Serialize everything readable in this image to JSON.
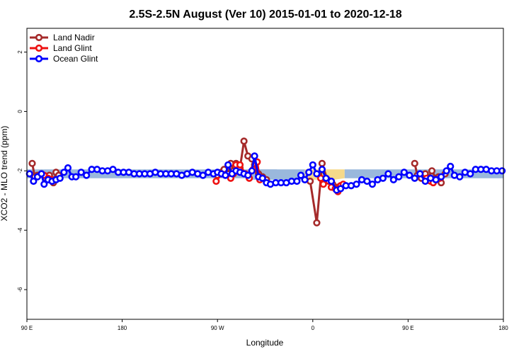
{
  "chart_data": {
    "type": "line",
    "title": "2.5S-2.5N August (Ver 10)   2015-01-01 to 2020-12-18",
    "xlabel": "Longitude",
    "ylabel": "XCO2 - MLO trend (ppm)",
    "xlim": [
      90,
      450
    ],
    "ylim": [
      -7.0,
      2.8
    ],
    "x_ticks": [
      {
        "value": 90,
        "label": "90 E"
      },
      {
        "value": 162,
        "label": "180"
      },
      {
        "value": 234,
        "label": "90 W"
      },
      {
        "value": 306,
        "label": "0"
      },
      {
        "value": 378,
        "label": "90 E"
      },
      {
        "value": 450,
        "label": "180"
      }
    ],
    "y_ticks": [
      {
        "value": 2,
        "label": "2"
      },
      {
        "value": 0,
        "label": "0"
      },
      {
        "value": -2,
        "label": "-2"
      },
      {
        "value": -4,
        "label": "-4"
      },
      {
        "value": -6,
        "label": "-6"
      }
    ],
    "legend_position": "top-left",
    "bands": [
      {
        "color": "#9ab8dc",
        "segments": [
          {
            "x": [
              90,
              124,
              131,
              245,
              252,
              279
            ],
            "ylo": [
              -2.25,
              -2.25,
              -2.25,
              -2.25,
              -2.25,
              -2.25
            ],
            "yhi": [
              -1.95,
              -1.95,
              -1.95,
              -1.95,
              -1.95,
              -1.95
            ]
          },
          {
            "x": [
              256,
              300
            ],
            "ylo": [
              -2.3,
              -2.3
            ],
            "yhi": [
              -1.95,
              -1.95
            ]
          },
          {
            "x": [
              330,
              450
            ],
            "ylo": [
              -2.25,
              -2.25
            ],
            "yhi": [
              -1.95,
              -1.95
            ]
          }
        ]
      },
      {
        "color": "#f5d98a",
        "segments": [
          {
            "x": [
              300,
              309,
              316,
              322,
              330
            ],
            "ylo": [
              -2.3,
              -2.3,
              -2.3,
              -2.3,
              -2.25
            ],
            "yhi": [
              -1.95,
              -1.95,
              -1.95,
              -1.95,
              -1.95
            ]
          }
        ]
      }
    ],
    "series": [
      {
        "name": "Land Nadir",
        "color": "#a52a2a",
        "segments": [
          [
            [
              94,
              -1.75
            ],
            [
              96,
              -2.2
            ],
            [
              98,
              -2.15
            ],
            [
              101,
              -2.1
            ],
            [
              104,
              -2.25
            ],
            [
              107,
              -2.15
            ],
            [
              110,
              -2.4
            ],
            [
              112,
              -2.05
            ],
            [
              114,
              -2.15
            ]
          ],
          [
            [
              234,
              -2.15
            ],
            [
              237,
              -2.05
            ],
            [
              239,
              -1.95
            ],
            [
              242,
              -2.1
            ],
            [
              244,
              -1.75
            ],
            [
              246,
              -2.0
            ],
            [
              248,
              -1.75
            ],
            [
              251,
              -1.9
            ],
            [
              254,
              -1.0
            ],
            [
              257,
              -1.5
            ],
            [
              260,
              -1.6
            ],
            [
              262,
              -1.8
            ],
            [
              265,
              -2.1
            ],
            [
              268,
              -2.2
            ],
            [
              271,
              -2.3
            ]
          ],
          [
            [
              304,
              -2.35
            ],
            [
              309,
              -3.75
            ],
            [
              313,
              -1.75
            ],
            [
              317,
              -2.3
            ],
            [
              321,
              -2.45
            ],
            [
              325,
              -2.55
            ]
          ],
          [
            [
              383,
              -1.75
            ],
            [
              385,
              -2.15
            ],
            [
              388,
              -2.25
            ],
            [
              391,
              -2.1
            ],
            [
              393,
              -2.25
            ],
            [
              396,
              -2.0
            ],
            [
              399,
              -2.25
            ],
            [
              401,
              -2.2
            ],
            [
              403,
              -2.4
            ],
            [
              406,
              -2.1
            ]
          ]
        ]
      },
      {
        "name": "Land Glint",
        "color": "#ee1111",
        "segments": [
          [
            [
              103,
              -2.15
            ],
            [
              106,
              -2.25
            ],
            [
              109,
              -2.3
            ]
          ],
          [
            [
              233,
              -2.35
            ],
            [
              237,
              -2.1
            ],
            [
              244,
              -2.25
            ],
            [
              246,
              -2.1
            ],
            [
              248,
              -1.8
            ],
            [
              251,
              -1.8
            ],
            [
              255,
              -2.1
            ],
            [
              258,
              -2.25
            ],
            [
              261,
              -1.95
            ],
            [
              264,
              -1.7
            ],
            [
              266,
              -2.3
            ]
          ],
          [
            [
              312,
              -2.25
            ],
            [
              314,
              -2.45
            ],
            [
              318,
              -2.35
            ],
            [
              320,
              -2.55
            ],
            [
              323,
              -2.6
            ],
            [
              325,
              -2.7
            ],
            [
              327,
              -2.5
            ],
            [
              329,
              -2.45
            ]
          ],
          [
            [
              392,
              -2.25
            ],
            [
              395,
              -2.35
            ],
            [
              397,
              -2.4
            ],
            [
              399,
              -2.3
            ],
            [
              402,
              -2.25
            ]
          ]
        ]
      },
      {
        "name": "Ocean Glint",
        "color": "#0000ff",
        "segments": [
          [
            [
              92,
              -2.1
            ],
            [
              95,
              -2.35
            ],
            [
              98,
              -2.2
            ],
            [
              101,
              -2.1
            ],
            [
              103,
              -2.45
            ],
            [
              106,
              -2.3
            ],
            [
              109,
              -2.35
            ],
            [
              112,
              -2.3
            ],
            [
              115,
              -2.25
            ],
            [
              118,
              -2.05
            ],
            [
              121,
              -1.9
            ],
            [
              124,
              -2.2
            ],
            [
              127,
              -2.2
            ],
            [
              131,
              -2.05
            ],
            [
              135,
              -2.15
            ],
            [
              139,
              -1.95
            ],
            [
              143,
              -1.95
            ],
            [
              147,
              -2.0
            ],
            [
              151,
              -2.0
            ],
            [
              155,
              -1.95
            ],
            [
              159,
              -2.05
            ],
            [
              163,
              -2.05
            ],
            [
              167,
              -2.05
            ],
            [
              171,
              -2.1
            ],
            [
              175,
              -2.1
            ],
            [
              179,
              -2.1
            ],
            [
              183,
              -2.1
            ],
            [
              187,
              -2.05
            ],
            [
              191,
              -2.1
            ],
            [
              195,
              -2.1
            ],
            [
              199,
              -2.1
            ],
            [
              203,
              -2.1
            ],
            [
              207,
              -2.15
            ],
            [
              211,
              -2.1
            ],
            [
              215,
              -2.05
            ],
            [
              219,
              -2.1
            ],
            [
              223,
              -2.15
            ],
            [
              227,
              -2.05
            ],
            [
              231,
              -2.1
            ],
            [
              234,
              -2.05
            ],
            [
              237,
              -2.1
            ],
            [
              240,
              -2.15
            ],
            [
              242,
              -1.8
            ],
            [
              245,
              -2.1
            ],
            [
              248,
              -2.0
            ],
            [
              251,
              -2.05
            ],
            [
              254,
              -2.1
            ],
            [
              257,
              -2.15
            ],
            [
              260,
              -2.0
            ],
            [
              262,
              -1.5
            ],
            [
              265,
              -2.2
            ],
            [
              268,
              -2.25
            ],
            [
              271,
              -2.4
            ],
            [
              274,
              -2.45
            ],
            [
              278,
              -2.4
            ],
            [
              282,
              -2.4
            ],
            [
              286,
              -2.4
            ],
            [
              290,
              -2.35
            ],
            [
              294,
              -2.35
            ],
            [
              297,
              -2.15
            ],
            [
              300,
              -2.3
            ],
            [
              303,
              -2.05
            ],
            [
              306,
              -1.8
            ],
            [
              309,
              -2.1
            ]
          ],
          [
            [
              313,
              -1.95
            ],
            [
              316,
              -2.25
            ],
            [
              320,
              -2.35
            ],
            [
              324,
              -2.65
            ],
            [
              327,
              -2.6
            ],
            [
              331,
              -2.5
            ],
            [
              335,
              -2.5
            ],
            [
              339,
              -2.45
            ],
            [
              343,
              -2.3
            ],
            [
              347,
              -2.35
            ],
            [
              351,
              -2.45
            ],
            [
              355,
              -2.3
            ],
            [
              359,
              -2.25
            ],
            [
              363,
              -2.1
            ],
            [
              367,
              -2.3
            ],
            [
              371,
              -2.2
            ],
            [
              375,
              -2.05
            ],
            [
              379,
              -2.15
            ],
            [
              383,
              -2.25
            ],
            [
              387,
              -2.1
            ],
            [
              391,
              -2.35
            ],
            [
              395,
              -2.25
            ],
            [
              399,
              -2.3
            ],
            [
              403,
              -2.2
            ],
            [
              407,
              -2.0
            ],
            [
              410,
              -1.85
            ],
            [
              413,
              -2.15
            ],
            [
              417,
              -2.2
            ],
            [
              421,
              -2.05
            ],
            [
              425,
              -2.1
            ],
            [
              429,
              -1.95
            ],
            [
              433,
              -1.95
            ],
            [
              437,
              -1.95
            ],
            [
              441,
              -2.0
            ],
            [
              445,
              -2.0
            ],
            [
              449,
              -2.0
            ]
          ]
        ]
      }
    ]
  }
}
